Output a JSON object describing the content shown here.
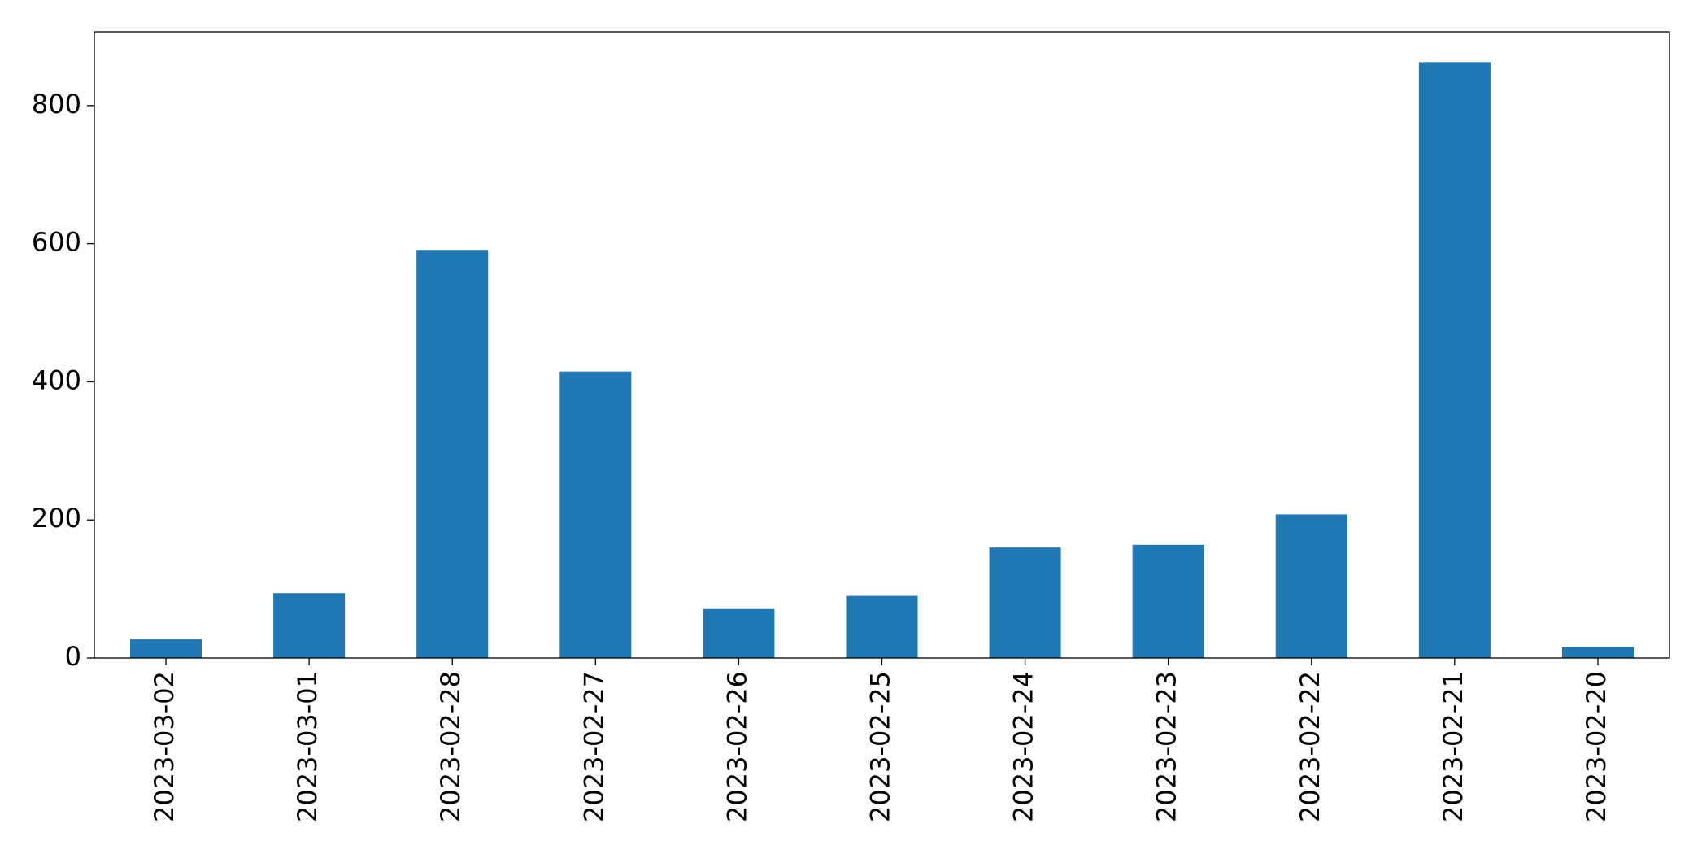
{
  "chart_data": {
    "type": "bar",
    "categories": [
      "2023-03-02",
      "2023-03-01",
      "2023-02-28",
      "2023-02-27",
      "2023-02-26",
      "2023-02-25",
      "2023-02-24",
      "2023-02-23",
      "2023-02-22",
      "2023-02-21",
      "2023-02-20"
    ],
    "values": [
      27,
      94,
      591,
      415,
      71,
      90,
      160,
      164,
      208,
      863,
      16
    ],
    "color": "#1f77b4",
    "ylim": [
      0,
      907
    ],
    "yticks": [
      0,
      200,
      400,
      600,
      800
    ],
    "grid": false
  }
}
